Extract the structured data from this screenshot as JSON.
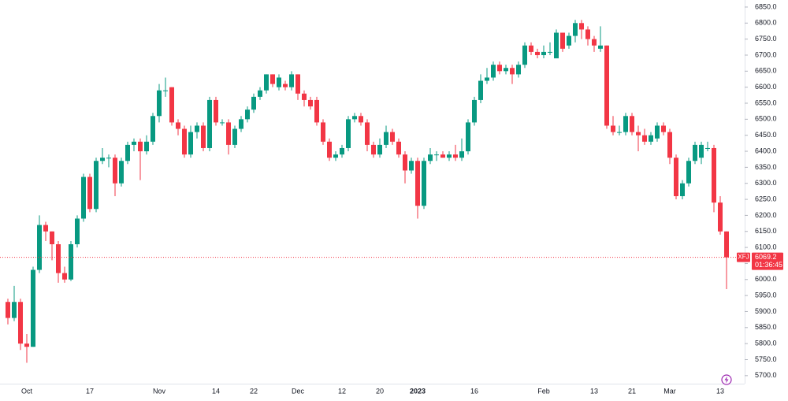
{
  "chart_data": {
    "type": "candlestick",
    "up_color": "#089981",
    "down_color": "#f23645",
    "grid": false,
    "symbol": "XFJ",
    "last_price": 6069.2,
    "countdown": "01:36:45",
    "categories": [
      null,
      null,
      null,
      "Oct",
      null,
      null,
      null,
      null,
      null,
      null,
      null,
      null,
      null,
      "17",
      null,
      null,
      null,
      null,
      null,
      null,
      null,
      null,
      null,
      null,
      "Nov",
      null,
      null,
      null,
      null,
      null,
      null,
      null,
      null,
      "14",
      null,
      null,
      null,
      null,
      null,
      "22",
      null,
      null,
      null,
      null,
      null,
      null,
      "Dec",
      null,
      null,
      null,
      null,
      null,
      null,
      "12",
      null,
      null,
      null,
      null,
      null,
      "20",
      null,
      null,
      null,
      null,
      null,
      "2023",
      null,
      null,
      null,
      null,
      null,
      null,
      null,
      null,
      "16",
      null,
      null,
      null,
      null,
      null,
      null,
      null,
      null,
      null,
      null,
      "Feb",
      null,
      null,
      null,
      null,
      null,
      null,
      null,
      "13",
      null,
      null,
      null,
      null,
      null,
      "21",
      null,
      null,
      null,
      null,
      null,
      "Mar",
      null,
      null,
      null,
      null,
      null,
      null,
      null,
      "13",
      null
    ],
    "open": [
      5930,
      5880,
      5930,
      5800,
      5790,
      6030,
      6170,
      6150,
      6110,
      6020,
      6000,
      6110,
      6190,
      6320,
      6220,
      6370,
      6380,
      6380,
      6300,
      6370,
      6420,
      6430,
      6400,
      6430,
      6510,
      6590,
      6600,
      6490,
      6470,
      6390,
      6460,
      6480,
      6410,
      6560,
      6490,
      6490,
      6420,
      6470,
      6500,
      6530,
      6570,
      6590,
      6640,
      6600,
      6610,
      6600,
      6640,
      6580,
      6560,
      6560,
      6490,
      6430,
      6380,
      6390,
      6410,
      6500,
      6510,
      6490,
      6420,
      6390,
      6420,
      6460,
      6430,
      6390,
      6340,
      6370,
      6230,
      6370,
      6390,
      6390,
      6380,
      6390,
      6380,
      6400,
      6490,
      6560,
      6620,
      6630,
      6670,
      6650,
      6660,
      6640,
      6670,
      6730,
      6710,
      6700,
      6710,
      6690,
      6770,
      6730,
      6760,
      6800,
      6780,
      6750,
      6720,
      6730,
      6480,
      6460,
      6460,
      6510,
      6460,
      6450,
      6430,
      6440,
      6480,
      6460,
      6380,
      6260,
      6300,
      6370,
      6380,
      6410,
      6410,
      6240,
      6150
    ],
    "high": [
      5940,
      5980,
      5940,
      5830,
      6040,
      6200,
      6180,
      6150,
      6120,
      6040,
      6120,
      6200,
      6330,
      6330,
      6380,
      6410,
      6390,
      6390,
      6380,
      6430,
      6440,
      6440,
      6450,
      6520,
      6610,
      6630,
      6600,
      6500,
      6480,
      6480,
      6490,
      6490,
      6570,
      6570,
      6500,
      6500,
      6480,
      6510,
      6540,
      6580,
      6600,
      6640,
      6640,
      6640,
      6620,
      6650,
      6640,
      6590,
      6570,
      6570,
      6500,
      6440,
      6400,
      6420,
      6510,
      6520,
      6520,
      6500,
      6430,
      6440,
      6480,
      6470,
      6440,
      6400,
      6380,
      6380,
      6380,
      6410,
      6400,
      6400,
      6400,
      6420,
      6440,
      6500,
      6570,
      6640,
      6660,
      6680,
      6680,
      6670,
      6670,
      6680,
      6740,
      6740,
      6720,
      6730,
      6740,
      6780,
      6770,
      6770,
      6810,
      6810,
      6790,
      6760,
      6790,
      6730,
      6510,
      6480,
      6520,
      6520,
      6480,
      6470,
      6460,
      6490,
      6490,
      6470,
      6390,
      6310,
      6380,
      6430,
      6430,
      6430,
      6420,
      6260,
      6150
    ],
    "low": [
      5860,
      5870,
      5780,
      5740,
      5790,
      6020,
      6120,
      6060,
      5990,
      5990,
      5995,
      6100,
      6180,
      6210,
      6210,
      6360,
      6350,
      6260,
      6290,
      6360,
      6400,
      6310,
      6390,
      6420,
      6490,
      6570,
      6480,
      6450,
      6380,
      6380,
      6440,
      6400,
      6400,
      6480,
      6480,
      6390,
      6410,
      6460,
      6490,
      6520,
      6560,
      6580,
      6600,
      6590,
      6590,
      6590,
      6560,
      6540,
      6530,
      6480,
      6420,
      6370,
      6370,
      6380,
      6400,
      6490,
      6480,
      6400,
      6380,
      6380,
      6410,
      6420,
      6380,
      6300,
      6330,
      6190,
      6220,
      6360,
      6370,
      6380,
      6370,
      6370,
      6370,
      6390,
      6480,
      6550,
      6610,
      6620,
      6640,
      6640,
      6610,
      6630,
      6660,
      6700,
      6690,
      6690,
      6700,
      6690,
      6710,
      6720,
      6740,
      6750,
      6730,
      6710,
      6710,
      6470,
      6450,
      6450,
      6450,
      6450,
      6400,
      6420,
      6420,
      6430,
      6450,
      6360,
      6250,
      6250,
      6290,
      6360,
      6360,
      6400,
      6210,
      6140,
      5970
    ],
    "close": [
      5880,
      5930,
      5800,
      5790,
      6030,
      6170,
      6150,
      6110,
      6020,
      6000,
      6110,
      6190,
      6320,
      6220,
      6370,
      6380,
      6380,
      6300,
      6370,
      6420,
      6430,
      6400,
      6430,
      6510,
      6590,
      6590,
      6490,
      6470,
      6390,
      6460,
      6480,
      6410,
      6560,
      6490,
      6490,
      6420,
      6470,
      6500,
      6530,
      6570,
      6590,
      6640,
      6610,
      6630,
      6600,
      6640,
      6580,
      6560,
      6540,
      6490,
      6430,
      6380,
      6390,
      6410,
      6500,
      6510,
      6490,
      6420,
      6390,
      6420,
      6460,
      6430,
      6390,
      6340,
      6370,
      6230,
      6370,
      6390,
      6390,
      6380,
      6390,
      6380,
      6400,
      6490,
      6560,
      6620,
      6630,
      6670,
      6650,
      6660,
      6640,
      6670,
      6730,
      6710,
      6700,
      6710,
      6710,
      6770,
      6720,
      6760,
      6800,
      6780,
      6750,
      6730,
      6730,
      6480,
      6460,
      6460,
      6510,
      6460,
      6450,
      6430,
      6450,
      6480,
      6460,
      6380,
      6260,
      6300,
      6370,
      6420,
      6420,
      6410,
      6240,
      6150,
      6069.2
    ],
    "ylim": [
      5675,
      6872
    ],
    "yticks": [
      {
        "value": 5700,
        "label": "5700.0"
      },
      {
        "value": 5750,
        "label": "5750.0"
      },
      {
        "value": 5800,
        "label": "5800.0"
      },
      {
        "value": 5850,
        "label": "5850.0"
      },
      {
        "value": 5900,
        "label": "5900.0"
      },
      {
        "value": 5950,
        "label": "5950.0"
      },
      {
        "value": 6000,
        "label": "6000.0"
      },
      {
        "value": 6050,
        "label": "6050.0"
      },
      {
        "value": 6100,
        "label": "6100.0"
      },
      {
        "value": 6150,
        "label": "6150.0"
      },
      {
        "value": 6200,
        "label": "6200.0"
      },
      {
        "value": 6250,
        "label": "6250.0"
      },
      {
        "value": 6300,
        "label": "6300.0"
      },
      {
        "value": 6350,
        "label": "6350.0"
      },
      {
        "value": 6400,
        "label": "6400.0"
      },
      {
        "value": 6450,
        "label": "6450.0"
      },
      {
        "value": 6500,
        "label": "6500.0"
      },
      {
        "value": 6550,
        "label": "6550.0"
      },
      {
        "value": 6600,
        "label": "6600.0"
      },
      {
        "value": 6650,
        "label": "6650.0"
      },
      {
        "value": 6700,
        "label": "6700.0"
      },
      {
        "value": 6750,
        "label": "6750.0"
      },
      {
        "value": 6800,
        "label": "6800.0"
      },
      {
        "value": 6850,
        "label": "6850.0"
      }
    ]
  }
}
